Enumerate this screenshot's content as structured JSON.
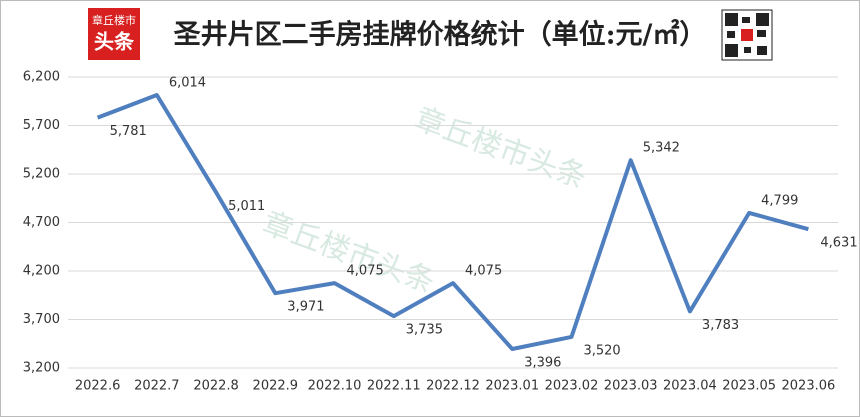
{
  "logo": {
    "line1": "章丘楼市",
    "line2": "头条"
  },
  "watermark": "章丘楼市头条",
  "chart_data": {
    "type": "line",
    "title": "圣井片区二手房挂牌价格统计（单位:元/㎡）",
    "categories": [
      "2022.6",
      "2022.7",
      "2022.8",
      "2022.9",
      "2022.10",
      "2022.11",
      "2022.12",
      "2023.01",
      "2023.02",
      "2023.03",
      "2023.04",
      "2023.05",
      "2023.06"
    ],
    "series": [
      {
        "name": "挂牌价格",
        "color": "#4f7fbf",
        "values": [
          5781,
          6014,
          5011,
          3971,
          4075,
          3735,
          4075,
          3396,
          3520,
          5342,
          3783,
          4799,
          4631
        ],
        "value_labels": [
          "5,781",
          "6,014",
          "5,011",
          "3,971",
          "4,075",
          "3,735",
          "4,075",
          "3,396",
          "3,520",
          "5,342",
          "3,783",
          "4,799",
          "4,631"
        ]
      }
    ],
    "ylim": [
      3200,
      6200
    ],
    "yticks": [
      {
        "value": 3200,
        "label": "3,200"
      },
      {
        "value": 3700,
        "label": "3,700"
      },
      {
        "value": 4200,
        "label": "4,200"
      },
      {
        "value": 4700,
        "label": "4,700"
      },
      {
        "value": 5200,
        "label": "5,200"
      },
      {
        "value": 5700,
        "label": "5,700"
      },
      {
        "value": 6200,
        "label": "6,200"
      }
    ],
    "grid": true
  }
}
